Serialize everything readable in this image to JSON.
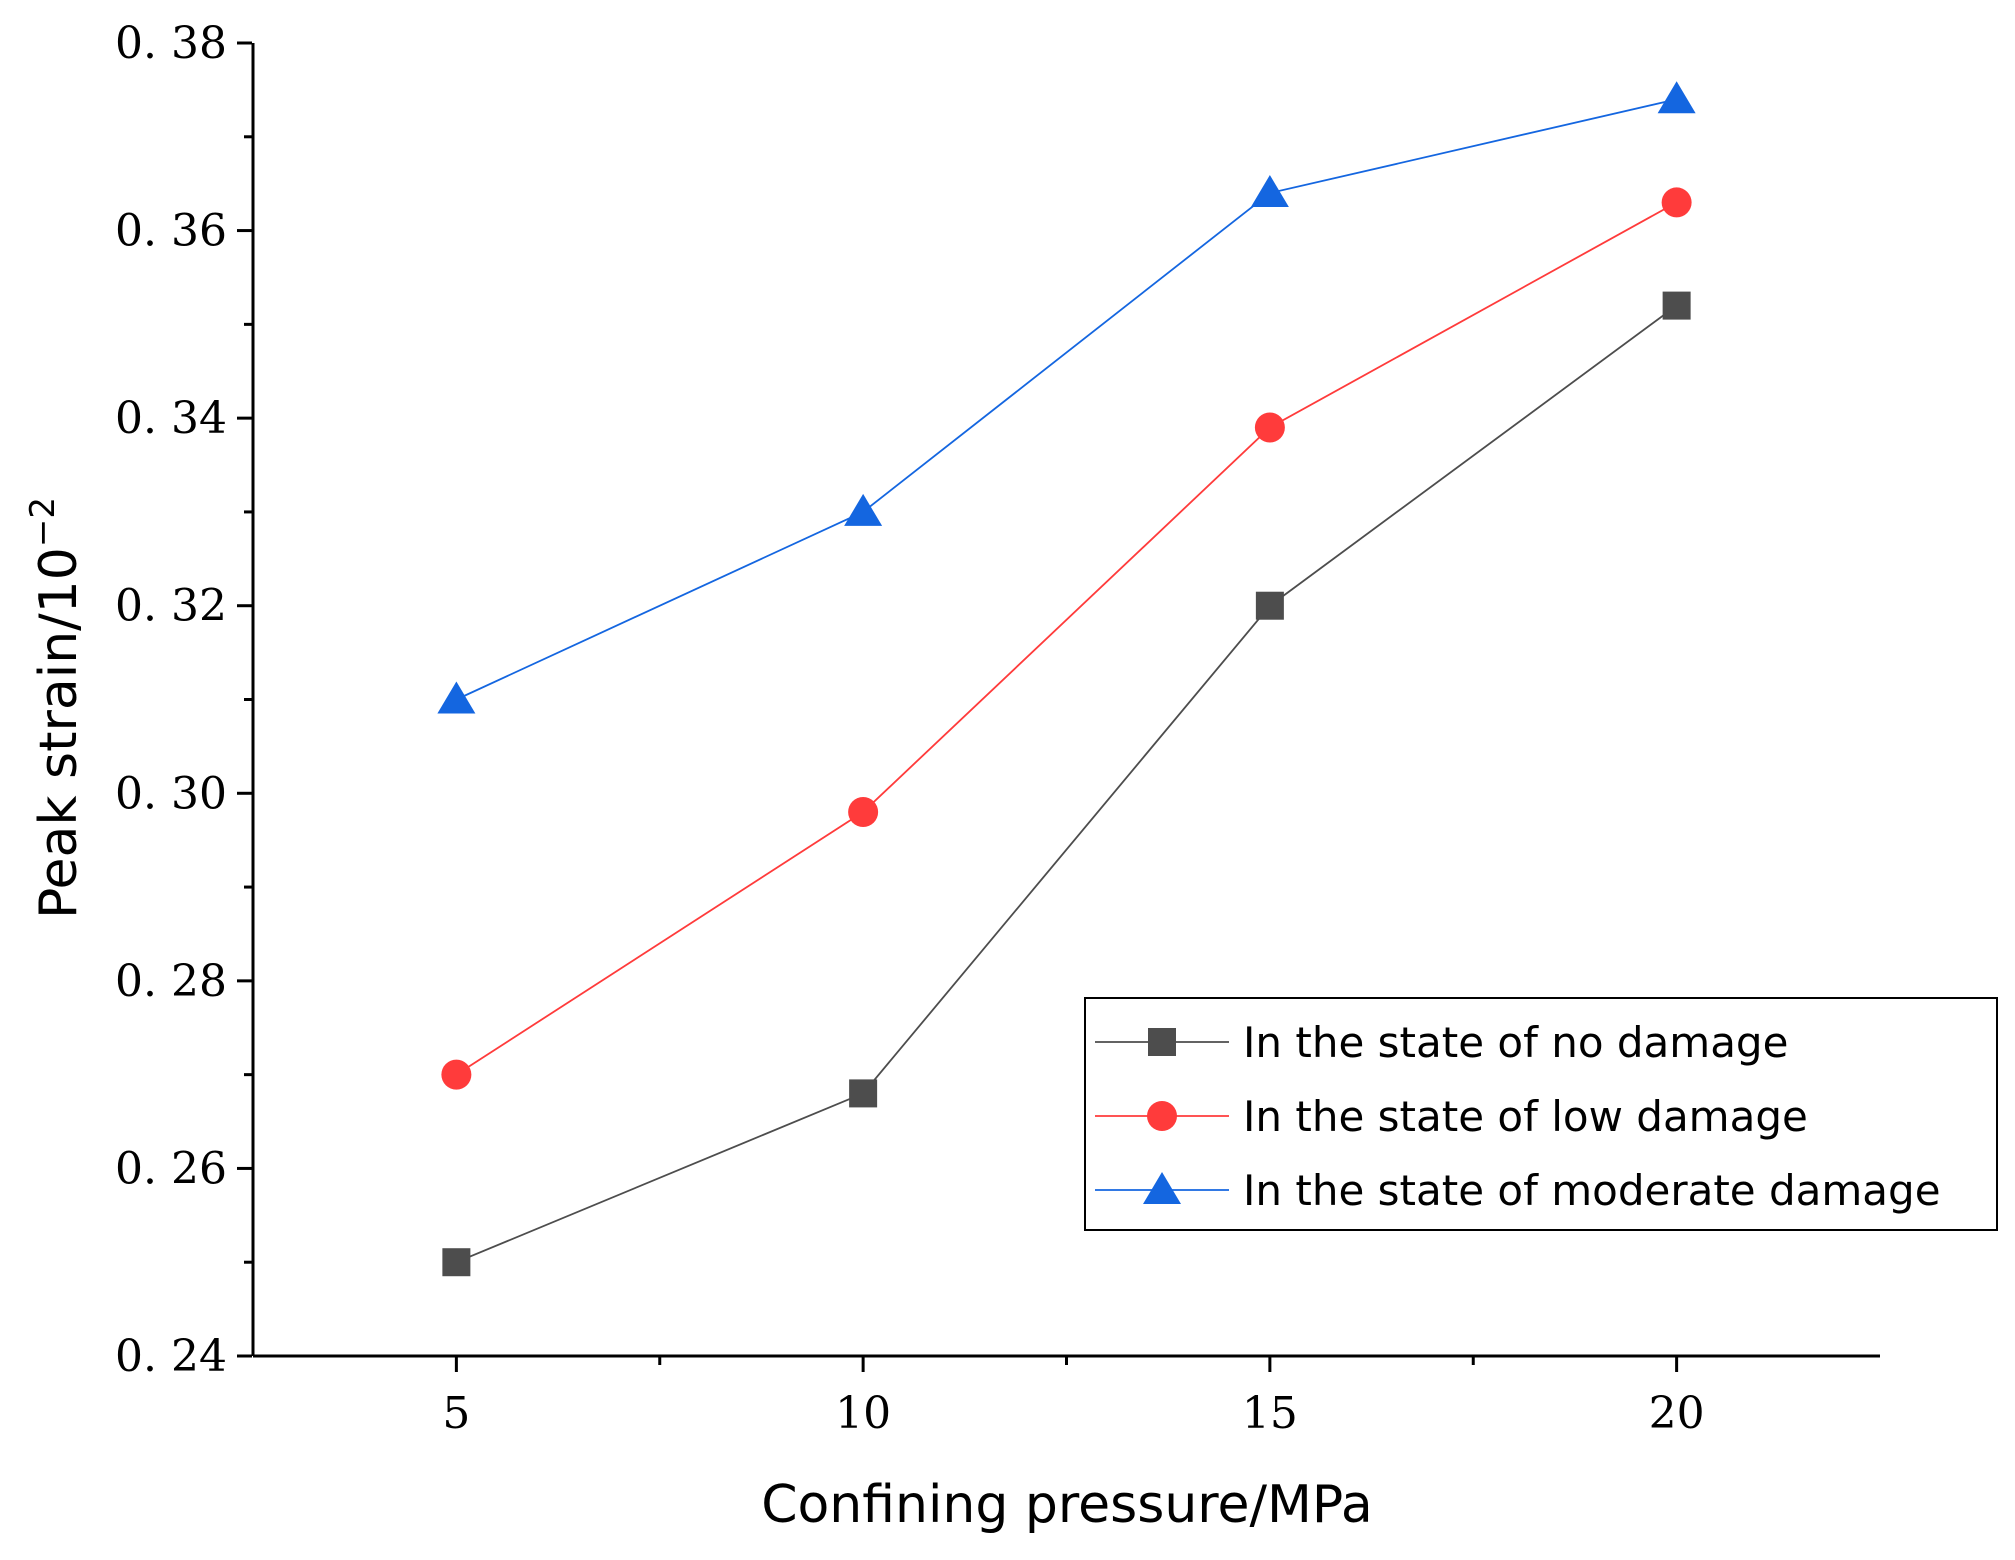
{
  "chart_data": {
    "type": "line",
    "title": "",
    "xlabel": "Confining pressure/MPa",
    "ylabel_base": "Peak strain/10",
    "ylabel_exponent": "−2",
    "x": [
      5,
      10,
      15,
      20
    ],
    "xlim": [
      2.5,
      22.5
    ],
    "ylim": [
      0.24,
      0.38
    ],
    "x_ticks": [
      5,
      10,
      15,
      20
    ],
    "x_tick_labels": [
      "5",
      "10",
      "15",
      "20"
    ],
    "y_ticks": [
      0.24,
      0.26,
      0.28,
      0.3,
      0.32,
      0.34,
      0.36,
      0.38
    ],
    "y_tick_labels": [
      "0. 24",
      "0. 26",
      "0. 28",
      "0. 30",
      "0. 32",
      "0. 34",
      "0. 36",
      "0. 38"
    ],
    "grid": false,
    "legend_position": "bottom-right",
    "series": [
      {
        "name": "In the state of no damage",
        "marker": "square",
        "color": "#4d4d4d",
        "values": [
          0.25,
          0.268,
          0.32,
          0.352
        ]
      },
      {
        "name": "In the state of low damage",
        "marker": "circle",
        "color": "#ff3b3b",
        "values": [
          0.27,
          0.298,
          0.339,
          0.363
        ]
      },
      {
        "name": "In the state of moderate damage",
        "marker": "triangle",
        "color": "#1466e0",
        "values": [
          0.31,
          0.33,
          0.364,
          0.374
        ]
      }
    ]
  }
}
